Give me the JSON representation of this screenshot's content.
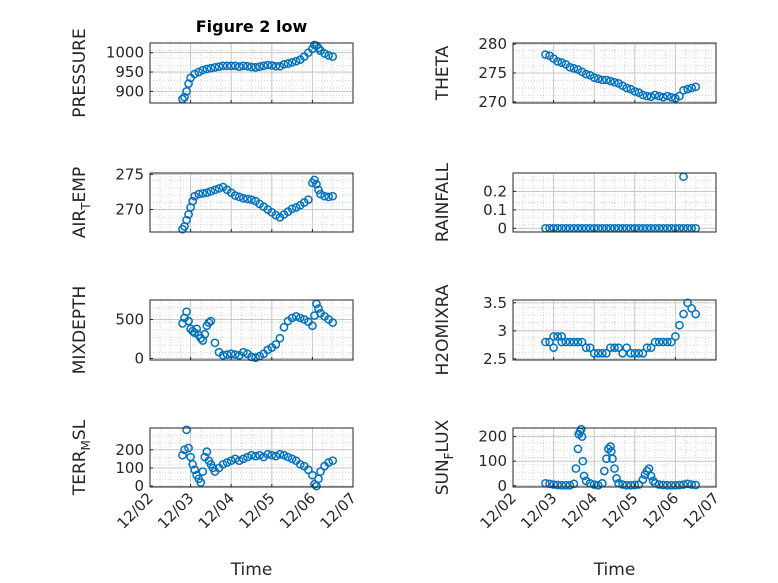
{
  "figure_title": "Figure 2 low",
  "x_label": "Time",
  "x_tick_labels": [
    "12/02",
    "12/03",
    "12/04",
    "12/05",
    "12/06",
    "12/07"
  ],
  "marker_color": "#0072BD",
  "chart_data": [
    {
      "type": "scatter",
      "title": "Figure 2 low",
      "ylabel": "PRESSURE",
      "ylim": [
        870,
        1025
      ],
      "yticks": [
        900,
        950,
        1000
      ],
      "x": [
        2.8,
        2.85,
        2.9,
        2.95,
        3.0,
        3.1,
        3.2,
        3.3,
        3.4,
        3.5,
        3.6,
        3.7,
        3.8,
        3.9,
        4.0,
        4.1,
        4.2,
        4.3,
        4.4,
        4.5,
        4.6,
        4.7,
        4.8,
        4.9,
        5.0,
        5.1,
        5.2,
        5.3,
        5.4,
        5.5,
        5.6,
        5.7,
        5.8,
        5.9,
        6.0,
        6.05,
        6.1,
        6.15,
        6.2,
        6.3,
        6.4,
        6.5
      ],
      "y": [
        880,
        885,
        900,
        920,
        935,
        945,
        950,
        955,
        958,
        960,
        962,
        964,
        966,
        966,
        966,
        966,
        964,
        966,
        965,
        963,
        962,
        964,
        966,
        968,
        967,
        965,
        965,
        970,
        972,
        975,
        978,
        982,
        990,
        1000,
        1010,
        1020,
        1018,
        1012,
        1005,
        998,
        993,
        990
      ]
    },
    {
      "type": "scatter",
      "ylabel": "THETA",
      "ylim": [
        269.8,
        280.2
      ],
      "yticks": [
        270,
        275,
        280
      ],
      "x": [
        2.8,
        2.9,
        3.0,
        3.1,
        3.2,
        3.3,
        3.4,
        3.5,
        3.6,
        3.7,
        3.8,
        3.9,
        4.0,
        4.1,
        4.2,
        4.3,
        4.4,
        4.5,
        4.6,
        4.7,
        4.8,
        4.9,
        5.0,
        5.1,
        5.2,
        5.3,
        5.4,
        5.5,
        5.6,
        5.7,
        5.8,
        5.9,
        6.0,
        6.1,
        6.2,
        6.3,
        6.4,
        6.5
      ],
      "y": [
        278.2,
        278.0,
        277.5,
        277.0,
        276.8,
        276.5,
        276.0,
        275.8,
        275.6,
        275.2,
        274.8,
        274.6,
        274.2,
        274.0,
        273.8,
        273.8,
        273.6,
        273.4,
        273.2,
        272.8,
        272.4,
        272.2,
        271.8,
        271.6,
        271.2,
        271.0,
        270.9,
        271.2,
        271.0,
        270.8,
        271.0,
        270.8,
        270.6,
        271.0,
        272.0,
        272.2,
        272.4,
        272.6
      ]
    },
    {
      "type": "scatter",
      "ylabel": "AIR_TEMP",
      "ylim": [
        266.8,
        275.2
      ],
      "yticks": [
        270,
        275
      ],
      "x": [
        2.8,
        2.85,
        2.9,
        2.95,
        3.0,
        3.05,
        3.1,
        3.2,
        3.3,
        3.4,
        3.5,
        3.6,
        3.7,
        3.8,
        3.9,
        4.0,
        4.1,
        4.2,
        4.3,
        4.4,
        4.5,
        4.6,
        4.7,
        4.8,
        4.9,
        5.0,
        5.1,
        5.2,
        5.3,
        5.4,
        5.5,
        5.6,
        5.7,
        5.8,
        5.9,
        6.0,
        6.05,
        6.1,
        6.15,
        6.2,
        6.3,
        6.4,
        6.5
      ],
      "y": [
        267.2,
        267.6,
        268.5,
        269.3,
        270.3,
        271.2,
        271.9,
        272.2,
        272.3,
        272.4,
        272.6,
        272.8,
        273.0,
        273.2,
        272.8,
        272.4,
        272.0,
        271.8,
        271.6,
        271.5,
        271.4,
        271.2,
        270.8,
        270.4,
        270.0,
        269.6,
        269.2,
        268.9,
        269.3,
        269.7,
        270.1,
        270.3,
        270.6,
        271.0,
        271.4,
        273.8,
        274.2,
        273.6,
        272.8,
        272.2,
        271.9,
        271.8,
        271.9
      ]
    },
    {
      "type": "scatter",
      "ylabel": "RAINFALL",
      "ylim": [
        -0.02,
        0.3
      ],
      "yticks": [
        0,
        0.1,
        0.2
      ],
      "x": [
        2.8,
        2.9,
        3.0,
        3.1,
        3.2,
        3.3,
        3.4,
        3.5,
        3.6,
        3.7,
        3.8,
        3.9,
        4.0,
        4.1,
        4.2,
        4.3,
        4.4,
        4.5,
        4.6,
        4.7,
        4.8,
        4.9,
        5.0,
        5.1,
        5.2,
        5.3,
        5.4,
        5.5,
        5.6,
        5.7,
        5.8,
        5.9,
        6.0,
        6.1,
        6.2,
        6.3,
        6.4,
        6.5,
        6.2
      ],
      "y": [
        0,
        0,
        0,
        0,
        0,
        0,
        0,
        0,
        0,
        0,
        0,
        0,
        0,
        0,
        0,
        0,
        0,
        0,
        0,
        0,
        0,
        0,
        0,
        0,
        0,
        0,
        0,
        0,
        0,
        0,
        0,
        0,
        0,
        0,
        0,
        0,
        0,
        0,
        0.28
      ]
    },
    {
      "type": "scatter",
      "ylabel": "MIXDEPTH",
      "ylim": [
        -20,
        750
      ],
      "yticks": [
        0,
        500
      ],
      "x": [
        2.8,
        2.85,
        2.9,
        2.95,
        3.0,
        3.05,
        3.1,
        3.15,
        3.2,
        3.25,
        3.3,
        3.35,
        3.4,
        3.45,
        3.5,
        3.6,
        3.7,
        3.8,
        3.9,
        4.0,
        4.1,
        4.2,
        4.3,
        4.4,
        4.5,
        4.6,
        4.7,
        4.8,
        4.9,
        5.0,
        5.1,
        5.2,
        5.3,
        5.4,
        5.5,
        5.6,
        5.7,
        5.8,
        5.9,
        6.0,
        6.05,
        6.1,
        6.15,
        6.2,
        6.3,
        6.4,
        6.5
      ],
      "y": [
        450,
        520,
        600,
        480,
        380,
        350,
        330,
        380,
        300,
        260,
        230,
        310,
        420,
        460,
        480,
        200,
        80,
        40,
        50,
        60,
        50,
        40,
        80,
        60,
        20,
        10,
        30,
        60,
        110,
        140,
        180,
        260,
        400,
        480,
        520,
        540,
        520,
        500,
        470,
        420,
        550,
        700,
        640,
        580,
        540,
        500,
        460
      ]
    },
    {
      "type": "scatter",
      "ylabel": "H2OMIXRA",
      "ylim": [
        2.48,
        3.55
      ],
      "yticks": [
        2.5,
        3,
        3.5
      ],
      "x": [
        2.8,
        2.9,
        3.0,
        3.1,
        3.2,
        3.3,
        3.4,
        3.5,
        3.6,
        3.7,
        3.8,
        3.9,
        4.0,
        4.1,
        4.2,
        4.3,
        4.4,
        4.5,
        4.6,
        4.7,
        4.8,
        4.9,
        5.0,
        5.1,
        5.2,
        5.3,
        5.4,
        5.5,
        5.6,
        5.7,
        5.8,
        5.9,
        6.0,
        6.1,
        6.2,
        6.3,
        6.4,
        6.5,
        3.0,
        3.2
      ],
      "y": [
        2.8,
        2.8,
        2.9,
        2.9,
        2.9,
        2.8,
        2.8,
        2.8,
        2.8,
        2.8,
        2.7,
        2.7,
        2.6,
        2.6,
        2.6,
        2.6,
        2.7,
        2.7,
        2.7,
        2.6,
        2.7,
        2.6,
        2.6,
        2.6,
        2.6,
        2.7,
        2.7,
        2.8,
        2.8,
        2.8,
        2.8,
        2.8,
        2.9,
        3.1,
        3.3,
        3.5,
        3.4,
        3.3,
        2.7,
        2.8
      ]
    },
    {
      "type": "scatter",
      "ylabel": "TERR_MSL",
      "ylim": [
        -5,
        320
      ],
      "yticks": [
        0,
        100,
        200
      ],
      "x": [
        2.8,
        2.85,
        2.9,
        2.95,
        3.0,
        3.05,
        3.1,
        3.15,
        3.2,
        3.25,
        3.3,
        3.35,
        3.4,
        3.45,
        3.5,
        3.55,
        3.6,
        3.7,
        3.8,
        3.9,
        4.0,
        4.1,
        4.2,
        4.3,
        4.4,
        4.5,
        4.6,
        4.7,
        4.8,
        4.9,
        5.0,
        5.1,
        5.2,
        5.3,
        5.4,
        5.5,
        5.6,
        5.7,
        5.8,
        5.9,
        6.0,
        6.05,
        6.1,
        6.15,
        6.2,
        6.3,
        6.4,
        6.5
      ],
      "y": [
        170,
        200,
        310,
        210,
        160,
        120,
        90,
        60,
        40,
        20,
        80,
        160,
        190,
        140,
        120,
        100,
        80,
        100,
        120,
        130,
        140,
        150,
        140,
        150,
        160,
        170,
        165,
        170,
        160,
        175,
        170,
        165,
        175,
        170,
        160,
        150,
        140,
        120,
        110,
        90,
        60,
        10,
        0,
        40,
        80,
        110,
        130,
        140
      ]
    },
    {
      "type": "scatter",
      "ylabel": "SUN_FLUX",
      "ylim": [
        -5,
        235
      ],
      "yticks": [
        0,
        100,
        200
      ],
      "x": [
        2.8,
        2.9,
        3.0,
        3.1,
        3.2,
        3.3,
        3.4,
        3.5,
        3.55,
        3.6,
        3.62,
        3.65,
        3.68,
        3.7,
        3.72,
        3.75,
        3.8,
        3.9,
        4.0,
        4.1,
        4.2,
        4.25,
        4.3,
        4.35,
        4.4,
        4.42,
        4.45,
        4.5,
        4.55,
        4.6,
        4.7,
        4.8,
        4.9,
        5.0,
        5.1,
        5.2,
        5.25,
        5.3,
        5.35,
        5.4,
        5.45,
        5.5,
        5.6,
        5.7,
        5.8,
        5.9,
        6.0,
        6.1,
        6.2,
        6.3,
        6.4,
        6.5
      ],
      "y": [
        10,
        8,
        5,
        3,
        2,
        2,
        2,
        8,
        70,
        150,
        210,
        220,
        230,
        200,
        100,
        40,
        20,
        10,
        5,
        2,
        10,
        60,
        110,
        150,
        160,
        140,
        110,
        70,
        30,
        10,
        5,
        2,
        2,
        3,
        5,
        25,
        45,
        60,
        70,
        40,
        20,
        10,
        5,
        3,
        2,
        2,
        2,
        3,
        5,
        8,
        5,
        3
      ]
    }
  ]
}
